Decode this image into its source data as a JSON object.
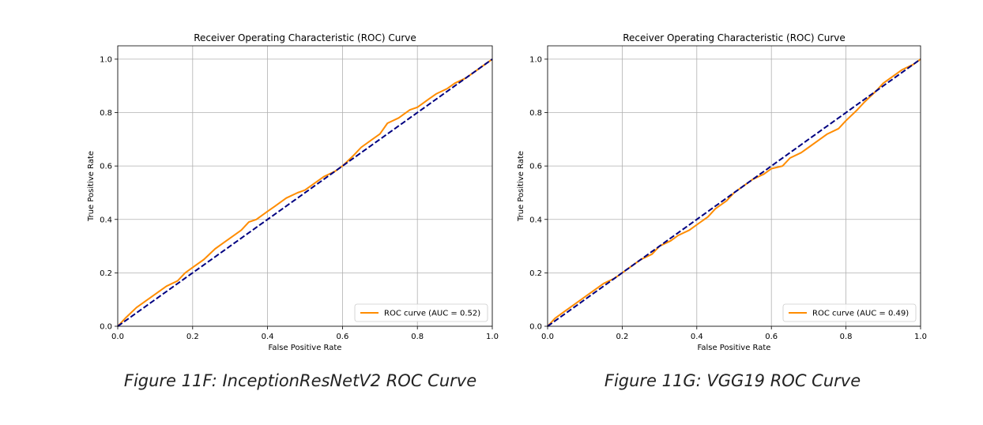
{
  "captions": {
    "left": "Figure 11F: InceptionResNetV2 ROC Curve",
    "right": "Figure 11G: VGG19 ROC Curve"
  },
  "colors": {
    "roc": "#ff8c00",
    "diagonal": "#000080",
    "grid": "#b0b0b0",
    "axis": "#000000"
  },
  "chart_data": [
    {
      "type": "line",
      "title": "Receiver Operating Characteristic (ROC) Curve",
      "xlabel": "False Positive Rate",
      "ylabel": "True Positive Rate",
      "xlim": [
        0.0,
        1.0
      ],
      "ylim": [
        0.0,
        1.05
      ],
      "xticks": [
        "0.0",
        "0.2",
        "0.4",
        "0.6",
        "0.8",
        "1.0"
      ],
      "yticks": [
        "0.0",
        "0.2",
        "0.4",
        "0.6",
        "0.8",
        "1.0"
      ],
      "grid": true,
      "legend_position": "lower-right",
      "series": [
        {
          "name": "ROC curve (AUC = 0.52)",
          "style": "solid",
          "x": [
            0.0,
            0.02,
            0.05,
            0.08,
            0.1,
            0.13,
            0.16,
            0.18,
            0.2,
            0.23,
            0.26,
            0.28,
            0.3,
            0.33,
            0.35,
            0.37,
            0.4,
            0.42,
            0.45,
            0.48,
            0.5,
            0.53,
            0.55,
            0.58,
            0.6,
            0.63,
            0.65,
            0.68,
            0.7,
            0.72,
            0.75,
            0.78,
            0.8,
            0.83,
            0.85,
            0.88,
            0.9,
            0.93,
            0.95,
            0.97,
            1.0
          ],
          "y": [
            0.0,
            0.03,
            0.07,
            0.1,
            0.12,
            0.15,
            0.17,
            0.2,
            0.22,
            0.25,
            0.29,
            0.31,
            0.33,
            0.36,
            0.39,
            0.4,
            0.43,
            0.45,
            0.48,
            0.5,
            0.51,
            0.54,
            0.56,
            0.58,
            0.6,
            0.64,
            0.67,
            0.7,
            0.72,
            0.76,
            0.78,
            0.81,
            0.82,
            0.85,
            0.87,
            0.89,
            0.91,
            0.93,
            0.95,
            0.97,
            1.0
          ]
        },
        {
          "style": "dashed",
          "x": [
            0.0,
            1.0
          ],
          "y": [
            0.0,
            1.0
          ]
        }
      ]
    },
    {
      "type": "line",
      "title": "Receiver Operating Characteristic (ROC) Curve",
      "xlabel": "False Positive Rate",
      "ylabel": "True Positive Rate",
      "xlim": [
        0.0,
        1.0
      ],
      "ylim": [
        0.0,
        1.05
      ],
      "xticks": [
        "0.0",
        "0.2",
        "0.4",
        "0.6",
        "0.8",
        "1.0"
      ],
      "yticks": [
        "0.0",
        "0.2",
        "0.4",
        "0.6",
        "0.8",
        "1.0"
      ],
      "grid": true,
      "legend_position": "lower-right",
      "series": [
        {
          "name": "ROC curve (AUC = 0.49)",
          "style": "solid",
          "x": [
            0.0,
            0.02,
            0.05,
            0.08,
            0.1,
            0.13,
            0.15,
            0.18,
            0.2,
            0.23,
            0.25,
            0.28,
            0.3,
            0.33,
            0.35,
            0.38,
            0.4,
            0.43,
            0.45,
            0.48,
            0.5,
            0.53,
            0.55,
            0.58,
            0.6,
            0.63,
            0.65,
            0.68,
            0.7,
            0.73,
            0.75,
            0.78,
            0.8,
            0.83,
            0.85,
            0.88,
            0.9,
            0.93,
            0.95,
            0.98,
            1.0
          ],
          "y": [
            0.0,
            0.03,
            0.06,
            0.09,
            0.11,
            0.14,
            0.16,
            0.18,
            0.2,
            0.23,
            0.25,
            0.27,
            0.3,
            0.32,
            0.34,
            0.36,
            0.38,
            0.41,
            0.44,
            0.47,
            0.5,
            0.53,
            0.55,
            0.57,
            0.59,
            0.6,
            0.63,
            0.65,
            0.67,
            0.7,
            0.72,
            0.74,
            0.77,
            0.81,
            0.84,
            0.88,
            0.91,
            0.94,
            0.96,
            0.98,
            1.0
          ]
        },
        {
          "style": "dashed",
          "x": [
            0.0,
            1.0
          ],
          "y": [
            0.0,
            1.0
          ]
        }
      ]
    }
  ]
}
